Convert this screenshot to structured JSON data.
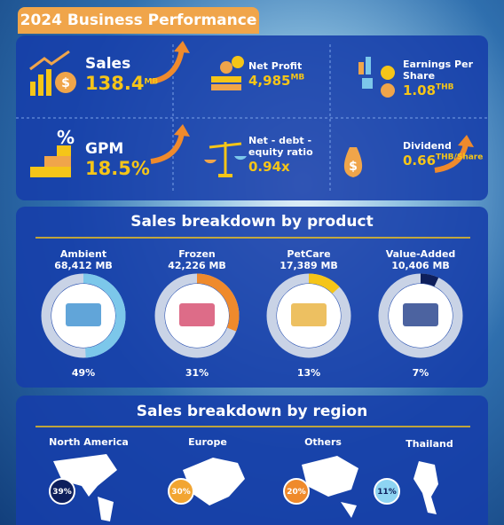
{
  "header": {
    "title": "2024 Business Performance"
  },
  "metrics": [
    {
      "label": "Sales",
      "value": "138.4",
      "unit": "MB"
    },
    {
      "label": "Net Profit",
      "value": "4,985",
      "unit": "MB"
    },
    {
      "label": "Earnings Per Share",
      "value": "1.08",
      "unit": "THB"
    },
    {
      "label": "GPM",
      "value": "18.5%",
      "unit": ""
    },
    {
      "label": "Net - debt - equity ratio",
      "value": "0.94x",
      "unit": ""
    },
    {
      "label": "Dividend",
      "value": "0.66",
      "unit": "THB/Share"
    }
  ],
  "products": {
    "title": "Sales breakdown by product",
    "names": [
      "Ambient",
      "Frozen",
      "PetCare",
      "Value-Added"
    ],
    "sales": [
      "68,412 MB",
      "42,226 MB",
      "17,389 MB",
      "10,406 MB"
    ],
    "values": [
      49,
      31,
      13,
      7
    ],
    "value_labels": [
      "49%",
      "31%",
      "13%",
      "7%"
    ],
    "colors": [
      "#7cc7ea",
      "#ef8a2c",
      "#f5c518",
      "#0e1f5c"
    ]
  },
  "regions": {
    "title": "Sales breakdown by region",
    "names": [
      "North America",
      "Europe",
      "Others",
      "Thailand"
    ],
    "shares": [
      "39%",
      "30%",
      "20%",
      "11%"
    ],
    "colors": [
      "#0e1f5c",
      "#f2a531",
      "#ef8a2c",
      "#8ed4f2"
    ]
  }
}
